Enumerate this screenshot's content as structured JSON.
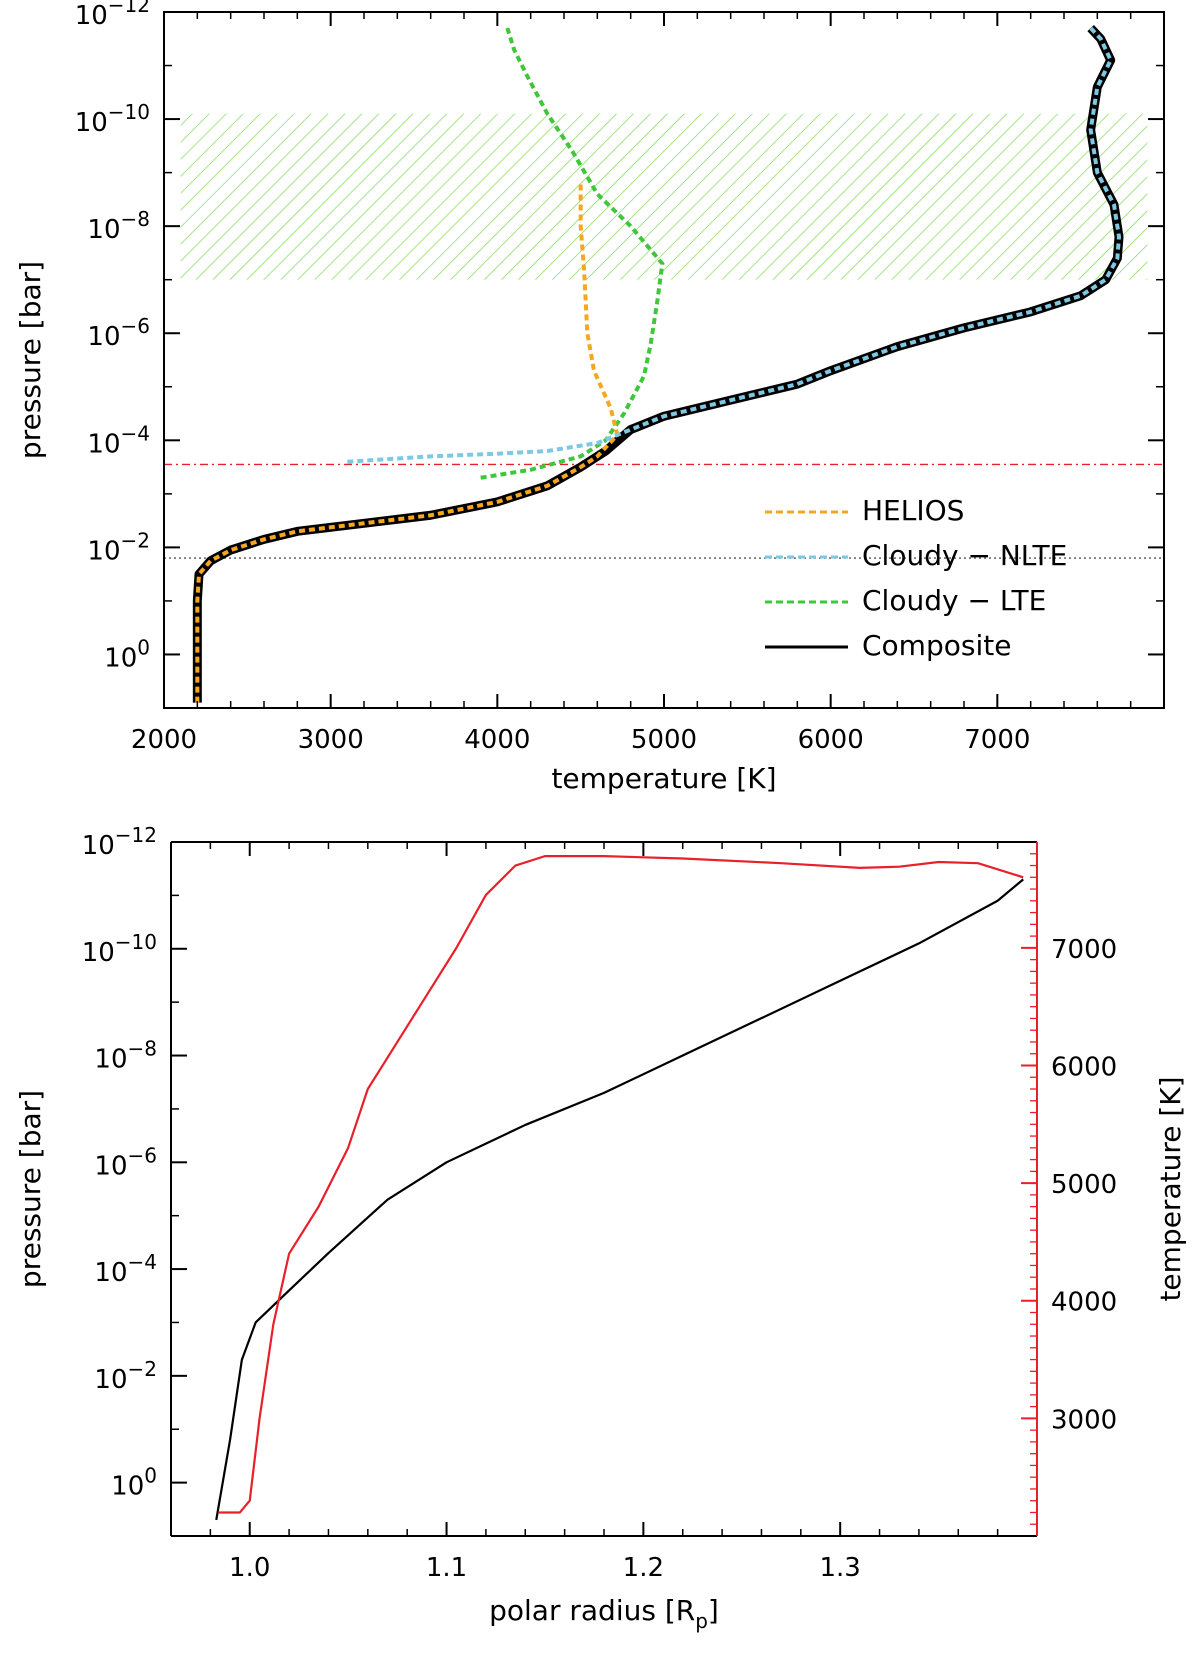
{
  "chart_data": [
    {
      "type": "line",
      "xlabel": "temperature [K]",
      "ylabel": "pressure [bar]",
      "xlim": [
        2000,
        8000
      ],
      "ylim_log10": [
        1,
        -12
      ],
      "y_scale": "log",
      "x_ticks": [
        {
          "value": 2000,
          "label": "2000"
        },
        {
          "value": 3000,
          "label": "3000"
        },
        {
          "value": 4000,
          "label": "4000"
        },
        {
          "value": 5000,
          "label": "5000"
        },
        {
          "value": 6000,
          "label": "6000"
        },
        {
          "value": 7000,
          "label": "7000"
        }
      ],
      "y_ticks": [
        {
          "exp": 0,
          "base": "10",
          "sup": "0"
        },
        {
          "exp": -2,
          "base": "10",
          "sup": "−2"
        },
        {
          "exp": -4,
          "base": "10",
          "sup": "−4"
        },
        {
          "exp": -6,
          "base": "10",
          "sup": "−6"
        },
        {
          "exp": -8,
          "base": "10",
          "sup": "−8"
        },
        {
          "exp": -10,
          "base": "10",
          "sup": "−10"
        },
        {
          "exp": -12,
          "base": "10",
          "sup": "−12"
        }
      ],
      "shaded_band": {
        "x_range": [
          2100,
          7900
        ],
        "log10_p_range": [
          -7,
          -10.1
        ],
        "color": "#7ed957",
        "hatch": "diagonal"
      },
      "hlines": [
        {
          "log10_p": -3.55,
          "color": "#e8202a",
          "style": "dash-dot"
        },
        {
          "log10_p": -1.8,
          "color": "#555555",
          "style": "dotted"
        }
      ],
      "legend": {
        "placement": "lower-right",
        "entries": [
          {
            "label": "HELIOS",
            "color": "#f5a623",
            "style": "dashed"
          },
          {
            "label": "Cloudy − NLTE",
            "color": "#7ec8e3",
            "style": "dashed"
          },
          {
            "label": "Cloudy − LTE",
            "color": "#3fc63a",
            "style": "dashed"
          },
          {
            "label": "Composite",
            "color": "#000000",
            "style": "solid"
          }
        ]
      },
      "series": [
        {
          "name": "Composite",
          "color": "#000000",
          "points": [
            [
              2200,
              0.9
            ],
            [
              2200,
              0
            ],
            [
              2200,
              -1
            ],
            [
              2210,
              -1.5
            ],
            [
              2280,
              -1.75
            ],
            [
              2400,
              -1.95
            ],
            [
              2600,
              -2.15
            ],
            [
              2800,
              -2.3
            ],
            [
              3200,
              -2.45
            ],
            [
              3600,
              -2.6
            ],
            [
              4000,
              -2.85
            ],
            [
              4300,
              -3.15
            ],
            [
              4500,
              -3.5
            ],
            [
              4650,
              -3.8
            ],
            [
              4800,
              -4.2
            ],
            [
              5000,
              -4.45
            ],
            [
              5400,
              -4.75
            ],
            [
              5800,
              -5.05
            ],
            [
              6000,
              -5.3
            ],
            [
              6400,
              -5.75
            ],
            [
              6800,
              -6.1
            ],
            [
              7200,
              -6.4
            ],
            [
              7500,
              -6.7
            ],
            [
              7650,
              -7.0
            ],
            [
              7720,
              -7.4
            ],
            [
              7730,
              -7.8
            ],
            [
              7700,
              -8.4
            ],
            [
              7600,
              -9.0
            ],
            [
              7560,
              -9.8
            ],
            [
              7600,
              -10.6
            ],
            [
              7680,
              -11.1
            ],
            [
              7620,
              -11.5
            ],
            [
              7560,
              -11.7
            ]
          ]
        },
        {
          "name": "HELIOS",
          "color": "#f5a623",
          "points": [
            [
              2200,
              0.9
            ],
            [
              2200,
              0
            ],
            [
              2200,
              -1
            ],
            [
              2210,
              -1.5
            ],
            [
              2280,
              -1.75
            ],
            [
              2400,
              -1.95
            ],
            [
              2600,
              -2.15
            ],
            [
              2800,
              -2.3
            ],
            [
              3200,
              -2.45
            ],
            [
              3600,
              -2.6
            ],
            [
              4000,
              -2.85
            ],
            [
              4300,
              -3.15
            ],
            [
              4500,
              -3.5
            ],
            [
              4600,
              -3.7
            ],
            [
              4720,
              -4.1
            ],
            [
              4680,
              -4.6
            ],
            [
              4580,
              -5.3
            ],
            [
              4540,
              -6.0
            ],
            [
              4520,
              -7.2
            ],
            [
              4500,
              -8.0
            ],
            [
              4500,
              -8.8
            ]
          ]
        },
        {
          "name": "Cloudy − NLTE",
          "color": "#7ec8e3",
          "points": [
            [
              3100,
              -3.6
            ],
            [
              3600,
              -3.7
            ],
            [
              4000,
              -3.75
            ],
            [
              4300,
              -3.8
            ],
            [
              4600,
              -3.95
            ],
            [
              4800,
              -4.2
            ],
            [
              5000,
              -4.45
            ],
            [
              5400,
              -4.75
            ],
            [
              5800,
              -5.05
            ],
            [
              6000,
              -5.3
            ],
            [
              6400,
              -5.75
            ],
            [
              6800,
              -6.1
            ],
            [
              7200,
              -6.4
            ],
            [
              7500,
              -6.7
            ],
            [
              7650,
              -7.0
            ],
            [
              7720,
              -7.4
            ],
            [
              7730,
              -7.8
            ],
            [
              7700,
              -8.4
            ],
            [
              7600,
              -9.0
            ],
            [
              7560,
              -9.8
            ],
            [
              7600,
              -10.6
            ],
            [
              7680,
              -11.1
            ],
            [
              7620,
              -11.5
            ],
            [
              7560,
              -11.7
            ]
          ]
        },
        {
          "name": "Cloudy − LTE",
          "color": "#3fc63a",
          "points": [
            [
              3900,
              -3.3
            ],
            [
              4200,
              -3.45
            ],
            [
              4500,
              -3.7
            ],
            [
              4650,
              -4.0
            ],
            [
              4760,
              -4.5
            ],
            [
              4880,
              -5.2
            ],
            [
              4920,
              -5.8
            ],
            [
              4960,
              -6.6
            ],
            [
              4990,
              -7.3
            ],
            [
              4800,
              -8.0
            ],
            [
              4600,
              -8.6
            ],
            [
              4450,
              -9.4
            ],
            [
              4300,
              -10.1
            ],
            [
              4180,
              -10.8
            ],
            [
              4100,
              -11.3
            ],
            [
              4060,
              -11.7
            ]
          ]
        }
      ]
    },
    {
      "type": "line",
      "xlabel": "polar radius [R",
      "xlabel_sub": "p",
      "xlabel_end": "]",
      "ylabel": "pressure [bar]",
      "y2label": "temperature [K]",
      "xlim": [
        0.96,
        1.4
      ],
      "ylim_log10": [
        1,
        -12
      ],
      "y2lim": [
        2000,
        7900
      ],
      "x_ticks": [
        {
          "value": 1.0,
          "label": "1.0"
        },
        {
          "value": 1.1,
          "label": "1.1"
        },
        {
          "value": 1.2,
          "label": "1.2"
        },
        {
          "value": 1.3,
          "label": "1.3"
        }
      ],
      "y_ticks": [
        {
          "exp": 0,
          "base": "10",
          "sup": "0"
        },
        {
          "exp": -2,
          "base": "10",
          "sup": "−2"
        },
        {
          "exp": -4,
          "base": "10",
          "sup": "−4"
        },
        {
          "exp": -6,
          "base": "10",
          "sup": "−6"
        },
        {
          "exp": -8,
          "base": "10",
          "sup": "−8"
        },
        {
          "exp": -10,
          "base": "10",
          "sup": "−10"
        },
        {
          "exp": -12,
          "base": "10",
          "sup": "−12"
        }
      ],
      "y2_ticks": [
        {
          "value": 3000,
          "label": "3000"
        },
        {
          "value": 4000,
          "label": "4000"
        },
        {
          "value": 5000,
          "label": "5000"
        },
        {
          "value": 6000,
          "label": "6000"
        },
        {
          "value": 7000,
          "label": "7000"
        }
      ],
      "y2_color": "#e8202a",
      "series": [
        {
          "name": "pressure",
          "axis": "left",
          "color": "#000000",
          "points": [
            [
              0.983,
              0.7
            ],
            [
              0.99,
              -0.8
            ],
            [
              0.996,
              -2.3
            ],
            [
              1.003,
              -3.0
            ],
            [
              1.02,
              -3.6
            ],
            [
              1.04,
              -4.3
            ],
            [
              1.07,
              -5.3
            ],
            [
              1.1,
              -6.0
            ],
            [
              1.14,
              -6.7
            ],
            [
              1.18,
              -7.3
            ],
            [
              1.22,
              -8.0
            ],
            [
              1.26,
              -8.7
            ],
            [
              1.3,
              -9.4
            ],
            [
              1.34,
              -10.1
            ],
            [
              1.38,
              -10.9
            ],
            [
              1.393,
              -11.3
            ]
          ]
        },
        {
          "name": "temperature",
          "axis": "right",
          "color": "#e8202a",
          "points": [
            [
              0.984,
              2200
            ],
            [
              0.995,
              2200
            ],
            [
              1.0,
              2300
            ],
            [
              1.005,
              3000
            ],
            [
              1.012,
              3800
            ],
            [
              1.02,
              4400
            ],
            [
              1.035,
              4800
            ],
            [
              1.05,
              5300
            ],
            [
              1.06,
              5800
            ],
            [
              1.075,
              6200
            ],
            [
              1.09,
              6600
            ],
            [
              1.105,
              7000
            ],
            [
              1.12,
              7450
            ],
            [
              1.135,
              7700
            ],
            [
              1.15,
              7780
            ],
            [
              1.18,
              7780
            ],
            [
              1.22,
              7760
            ],
            [
              1.27,
              7720
            ],
            [
              1.31,
              7680
            ],
            [
              1.33,
              7690
            ],
            [
              1.35,
              7730
            ],
            [
              1.37,
              7720
            ],
            [
              1.393,
              7600
            ]
          ]
        }
      ]
    }
  ]
}
